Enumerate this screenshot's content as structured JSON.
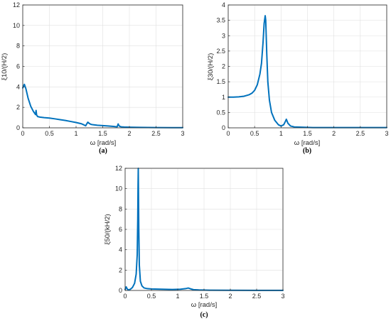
{
  "chart_data": [
    {
      "type": "line",
      "panel": "a",
      "caption": "(a)",
      "xlabel": "ω  [rad/s]",
      "ylabel": "ξ10/(H/2)",
      "xlim": [
        0,
        3
      ],
      "ylim": [
        0,
        12
      ],
      "xticks": [
        0,
        0.5,
        1,
        1.5,
        2,
        2.5,
        3
      ],
      "xtick_labels": [
        "0",
        "0.5",
        "1",
        "1.5",
        "2",
        "2.5",
        "3"
      ],
      "yticks": [
        0,
        2,
        4,
        6,
        8,
        10,
        12
      ],
      "ytick_labels": [
        "0",
        "2",
        "4",
        "6",
        "8",
        "10",
        "12"
      ],
      "grid": true,
      "color": "#0072bd",
      "series": [
        {
          "x": [
            0,
            0.03,
            0.06,
            0.1,
            0.15,
            0.2,
            0.24,
            0.25,
            0.26,
            0.28,
            0.32,
            0.4,
            0.5,
            0.6,
            0.7,
            0.8,
            0.9,
            1.0,
            1.1,
            1.15,
            1.18,
            1.2,
            1.22,
            1.25,
            1.28,
            1.32,
            1.4,
            1.5,
            1.6,
            1.7,
            1.77,
            1.79,
            1.8,
            1.82,
            1.85,
            1.9,
            2.0,
            2.2,
            2.5,
            2.8,
            3.0
          ],
          "y": [
            3.9,
            4.25,
            3.8,
            2.9,
            2.1,
            1.6,
            1.3,
            1.7,
            1.25,
            1.1,
            1.05,
            1.0,
            0.95,
            0.88,
            0.8,
            0.72,
            0.62,
            0.52,
            0.4,
            0.28,
            0.2,
            0.38,
            0.55,
            0.42,
            0.34,
            0.3,
            0.25,
            0.22,
            0.18,
            0.14,
            0.1,
            0.38,
            0.25,
            0.14,
            0.1,
            0.08,
            0.06,
            0.04,
            0.03,
            0.02,
            0.02
          ]
        }
      ]
    },
    {
      "type": "line",
      "panel": "b",
      "caption": "(b)",
      "xlabel": "ω  [rad/s]",
      "ylabel": "ξ30/(H/2)",
      "xlim": [
        0,
        3
      ],
      "ylim": [
        0,
        4
      ],
      "xticks": [
        0,
        0.5,
        1,
        1.5,
        2,
        2.5,
        3
      ],
      "xtick_labels": [
        "0",
        "0.5",
        "1",
        "1.5",
        "2",
        "2.5",
        "3"
      ],
      "yticks": [
        0,
        0.5,
        1,
        1.5,
        2,
        2.5,
        3,
        3.5,
        4
      ],
      "ytick_labels": [
        "0",
        "0.5",
        "1",
        "1.5",
        "2",
        "2.5",
        "3",
        "3.5",
        "4"
      ],
      "grid": true,
      "color": "#0072bd",
      "series": [
        {
          "x": [
            0,
            0.1,
            0.2,
            0.3,
            0.4,
            0.45,
            0.5,
            0.55,
            0.6,
            0.63,
            0.66,
            0.68,
            0.7,
            0.71,
            0.73,
            0.75,
            0.78,
            0.82,
            0.88,
            0.95,
            1.0,
            1.05,
            1.08,
            1.1,
            1.13,
            1.18,
            1.25,
            1.4,
            1.6,
            2.0,
            2.5,
            3.0
          ],
          "y": [
            1.0,
            1.0,
            1.01,
            1.03,
            1.08,
            1.13,
            1.22,
            1.4,
            1.75,
            2.1,
            2.8,
            3.4,
            3.65,
            3.5,
            2.4,
            1.5,
            0.9,
            0.5,
            0.25,
            0.1,
            0.06,
            0.1,
            0.2,
            0.28,
            0.15,
            0.06,
            0.03,
            0.02,
            0.01,
            0.01,
            0.01,
            0.01
          ]
        }
      ]
    },
    {
      "type": "line",
      "panel": "c",
      "caption": "(c)",
      "xlabel": "ω  [rad/s]",
      "ylabel": "ξ50/(kH/2)",
      "xlim": [
        0,
        3
      ],
      "ylim": [
        0,
        12
      ],
      "xticks": [
        0,
        0.5,
        1,
        1.5,
        2,
        2.5,
        3
      ],
      "xtick_labels": [
        "0",
        "0.5",
        "1",
        "1.5",
        "2",
        "2.5",
        "3"
      ],
      "yticks": [
        0,
        2,
        4,
        6,
        8,
        10,
        12
      ],
      "ytick_labels": [
        "0",
        "2",
        "4",
        "6",
        "8",
        "10",
        "12"
      ],
      "grid": true,
      "color": "#0072bd",
      "series": [
        {
          "x": [
            0,
            0.02,
            0.04,
            0.06,
            0.1,
            0.14,
            0.18,
            0.21,
            0.23,
            0.24,
            0.245,
            0.25,
            0.255,
            0.26,
            0.27,
            0.29,
            0.32,
            0.36,
            0.42,
            0.5,
            0.7,
            0.9,
            1.05,
            1.15,
            1.2,
            1.25,
            1.3,
            1.4,
            1.6,
            2.0,
            2.5,
            3.0
          ],
          "y": [
            0.1,
            0.35,
            0.15,
            0.05,
            0.12,
            0.3,
            0.7,
            1.6,
            3.5,
            7.0,
            10.0,
            12.0,
            9.0,
            6.0,
            2.5,
            0.9,
            0.45,
            0.25,
            0.18,
            0.15,
            0.12,
            0.1,
            0.12,
            0.18,
            0.24,
            0.15,
            0.08,
            0.05,
            0.03,
            0.02,
            0.01,
            0.01
          ]
        }
      ]
    }
  ]
}
